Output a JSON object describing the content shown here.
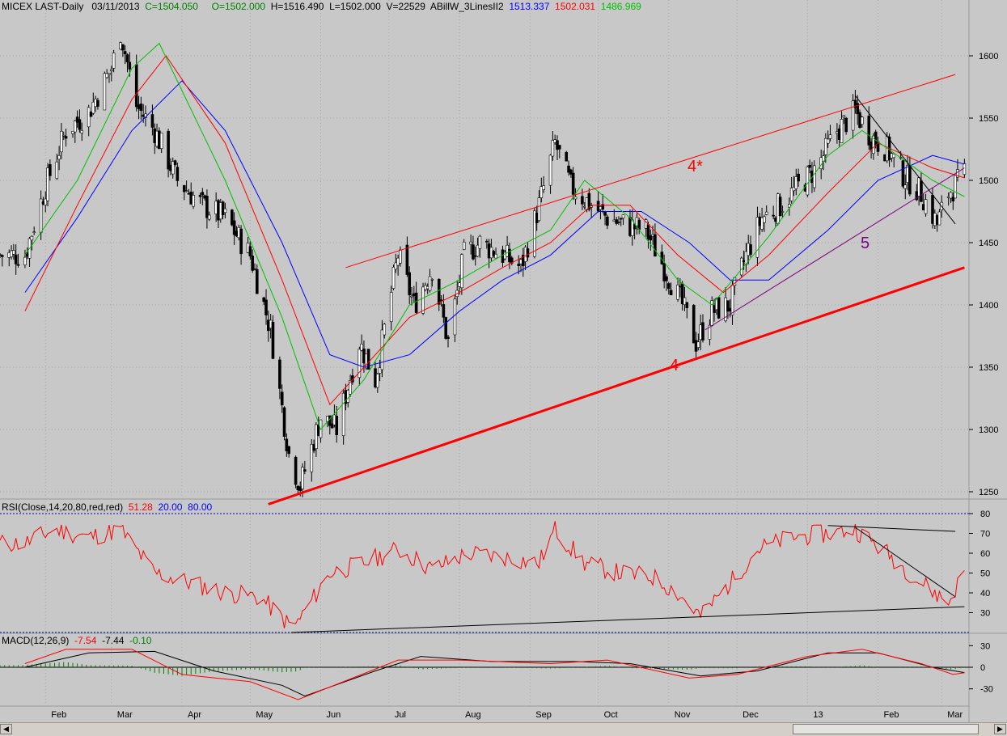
{
  "header": {
    "symbol": "MICEX LAST-Daily",
    "date": "03/11/2013",
    "close": "C=1504.050",
    "open": "O=1502.000",
    "high": "H=1516.490",
    "low": "L=1502.000",
    "volume": "V=22529",
    "indicator": "ABillW_3LinesII2",
    "ind_blue": "1513.337",
    "ind_red": "1502.031",
    "ind_green": "1486.969"
  },
  "rsi_header": {
    "label": "RSI(Close,14,20,80,red,red)",
    "value": "51.28",
    "lower": "20.00",
    "upper": "80.00"
  },
  "macd_header": {
    "label": "MACD(12,26,9)",
    "macd": "-7.54",
    "signal": "-7.44",
    "hist": "-0.10"
  },
  "annotations": {
    "wave4star": "4*",
    "wave4": "4",
    "wave5": "5"
  },
  "colors": {
    "up": "#ffffff",
    "down": "#000000",
    "blue": "#0000ff",
    "red": "#ff0000",
    "green": "#00c000",
    "purple": "#800080",
    "grid": "#0000aa"
  },
  "chart_data": [
    {
      "type": "candlestick",
      "title": "MICEX LAST-Daily",
      "price_ticks": [
        1250,
        1300,
        1350,
        1400,
        1450,
        1500,
        1550,
        1600
      ],
      "month_labels": [
        "Feb",
        "Mar",
        "Apr",
        "May",
        "Jun",
        "Jul",
        "Aug",
        "Sep",
        "Oct",
        "Nov",
        "Dec",
        "13",
        "Feb",
        "Mar"
      ],
      "close_path": [
        [
          "2012-01-23",
          1440
        ],
        [
          "2012-02-01",
          1495
        ],
        [
          "2012-02-10",
          1540
        ],
        [
          "2012-02-20",
          1555
        ],
        [
          "2012-03-01",
          1590
        ],
        [
          "2012-03-05",
          1620
        ],
        [
          "2012-03-12",
          1560
        ],
        [
          "2012-03-20",
          1540
        ],
        [
          "2012-03-30",
          1500
        ],
        [
          "2012-04-10",
          1480
        ],
        [
          "2012-04-20",
          1470
        ],
        [
          "2012-05-01",
          1440
        ],
        [
          "2012-05-10",
          1380
        ],
        [
          "2012-05-18",
          1280
        ],
        [
          "2012-05-23",
          1255
        ],
        [
          "2012-06-01",
          1310
        ],
        [
          "2012-06-08",
          1300
        ],
        [
          "2012-06-18",
          1370
        ],
        [
          "2012-06-25",
          1340
        ],
        [
          "2012-07-05",
          1440
        ],
        [
          "2012-07-12",
          1400
        ],
        [
          "2012-07-20",
          1430
        ],
        [
          "2012-07-27",
          1370
        ],
        [
          "2012-08-03",
          1440
        ],
        [
          "2012-08-10",
          1450
        ],
        [
          "2012-08-20",
          1440
        ],
        [
          "2012-08-28",
          1430
        ],
        [
          "2012-09-05",
          1480
        ],
        [
          "2012-09-12",
          1530
        ],
        [
          "2012-09-19",
          1495
        ],
        [
          "2012-09-28",
          1480
        ],
        [
          "2012-10-05",
          1470
        ],
        [
          "2012-10-12",
          1465
        ],
        [
          "2012-10-22",
          1460
        ],
        [
          "2012-10-30",
          1430
        ],
        [
          "2012-11-07",
          1400
        ],
        [
          "2012-11-13",
          1370
        ],
        [
          "2012-11-20",
          1395
        ],
        [
          "2012-11-28",
          1400
        ],
        [
          "2012-12-05",
          1440
        ],
        [
          "2012-12-12",
          1470
        ],
        [
          "2012-12-20",
          1480
        ],
        [
          "2013-01-05",
          1510
        ],
        [
          "2013-01-14",
          1540
        ],
        [
          "2013-01-22",
          1555
        ],
        [
          "2013-01-29",
          1535
        ],
        [
          "2013-02-05",
          1525
        ],
        [
          "2013-02-12",
          1505
        ],
        [
          "2013-02-20",
          1490
        ],
        [
          "2013-02-27",
          1465
        ],
        [
          "2013-03-04",
          1490
        ],
        [
          "2013-03-11",
          1504
        ]
      ],
      "ma_blue": [
        [
          "2012-01-23",
          1410
        ],
        [
          "2012-02-15",
          1470
        ],
        [
          "2012-03-10",
          1540
        ],
        [
          "2012-04-01",
          1580
        ],
        [
          "2012-04-20",
          1540
        ],
        [
          "2012-05-15",
          1450
        ],
        [
          "2012-06-05",
          1360
        ],
        [
          "2012-06-20",
          1350
        ],
        [
          "2012-07-10",
          1360
        ],
        [
          "2012-08-01",
          1395
        ],
        [
          "2012-08-20",
          1420
        ],
        [
          "2012-09-10",
          1440
        ],
        [
          "2012-10-01",
          1475
        ],
        [
          "2012-10-20",
          1475
        ],
        [
          "2012-11-10",
          1450
        ],
        [
          "2012-11-28",
          1420
        ],
        [
          "2012-12-15",
          1420
        ],
        [
          "2013-01-10",
          1460
        ],
        [
          "2013-02-01",
          1500
        ],
        [
          "2013-02-25",
          1520
        ],
        [
          "2013-03-11",
          1513
        ]
      ],
      "ma_red": [
        [
          "2012-01-23",
          1395
        ],
        [
          "2012-02-15",
          1480
        ],
        [
          "2012-03-10",
          1565
        ],
        [
          "2012-03-25",
          1600
        ],
        [
          "2012-04-20",
          1530
        ],
        [
          "2012-05-15",
          1420
        ],
        [
          "2012-06-05",
          1320
        ],
        [
          "2012-06-20",
          1350
        ],
        [
          "2012-07-10",
          1390
        ],
        [
          "2012-08-01",
          1410
        ],
        [
          "2012-08-20",
          1430
        ],
        [
          "2012-09-10",
          1450
        ],
        [
          "2012-09-28",
          1480
        ],
        [
          "2012-10-15",
          1480
        ],
        [
          "2012-11-05",
          1440
        ],
        [
          "2012-11-25",
          1410
        ],
        [
          "2012-12-15",
          1440
        ],
        [
          "2013-01-10",
          1490
        ],
        [
          "2013-02-01",
          1530
        ],
        [
          "2013-02-25",
          1510
        ],
        [
          "2013-03-11",
          1502
        ]
      ],
      "ma_green": [
        [
          "2012-01-23",
          1440
        ],
        [
          "2012-02-15",
          1500
        ],
        [
          "2012-03-10",
          1590
        ],
        [
          "2012-03-22",
          1610
        ],
        [
          "2012-04-20",
          1500
        ],
        [
          "2012-05-15",
          1390
        ],
        [
          "2012-06-01",
          1300
        ],
        [
          "2012-06-20",
          1340
        ],
        [
          "2012-07-10",
          1400
        ],
        [
          "2012-08-01",
          1420
        ],
        [
          "2012-08-20",
          1440
        ],
        [
          "2012-09-10",
          1460
        ],
        [
          "2012-09-25",
          1500
        ],
        [
          "2012-10-15",
          1470
        ],
        [
          "2012-11-05",
          1420
        ],
        [
          "2012-11-20",
          1400
        ],
        [
          "2012-12-15",
          1455
        ],
        [
          "2013-01-10",
          1520
        ],
        [
          "2013-01-25",
          1540
        ],
        [
          "2013-02-25",
          1500
        ],
        [
          "2013-03-11",
          1487
        ]
      ],
      "trendlines": [
        {
          "color": "red",
          "from": [
            "2012-05-09",
            1240
          ],
          "to": [
            "2013-03-11",
            1430
          ],
          "bold": true
        },
        {
          "color": "red",
          "from": [
            "2012-06-12",
            1430
          ],
          "to": [
            "2013-03-07",
            1585
          ],
          "bold": false
        },
        {
          "color": "purple",
          "from": [
            "2012-11-17",
            1380
          ],
          "to": [
            "2013-03-11",
            1510
          ],
          "bold": false
        },
        {
          "color": "black",
          "from": [
            "2013-01-22",
            1568
          ],
          "to": [
            "2013-03-07",
            1465
          ],
          "bold": false
        }
      ]
    },
    {
      "type": "line",
      "title": "RSI(Close,14,20,80,red,red)",
      "y_ticks": [
        30,
        40,
        50,
        60,
        70,
        80
      ],
      "levels": [
        20,
        80
      ],
      "series": [
        {
          "name": "RSI",
          "values": [
            [
              "2012-01-23",
              65
            ],
            [
              "2012-02-05",
              72
            ],
            [
              "2012-02-20",
              68
            ],
            [
              "2012-03-05",
              72
            ],
            [
              "2012-03-20",
              50
            ],
            [
              "2012-04-05",
              45
            ],
            [
              "2012-04-20",
              40
            ],
            [
              "2012-05-05",
              38
            ],
            [
              "2012-05-20",
              22
            ],
            [
              "2012-06-05",
              50
            ],
            [
              "2012-06-20",
              55
            ],
            [
              "2012-07-05",
              62
            ],
            [
              "2012-07-20",
              52
            ],
            [
              "2012-08-05",
              60
            ],
            [
              "2012-08-20",
              58
            ],
            [
              "2012-09-05",
              55
            ],
            [
              "2012-09-12",
              72
            ],
            [
              "2012-09-25",
              55
            ],
            [
              "2012-10-10",
              50
            ],
            [
              "2012-10-25",
              48
            ],
            [
              "2012-11-05",
              40
            ],
            [
              "2012-11-15",
              28
            ],
            [
              "2012-11-28",
              45
            ],
            [
              "2012-12-10",
              62
            ],
            [
              "2012-12-25",
              68
            ],
            [
              "2013-01-10",
              70
            ],
            [
              "2013-01-22",
              72
            ],
            [
              "2013-02-05",
              60
            ],
            [
              "2013-02-20",
              45
            ],
            [
              "2013-03-04",
              35
            ],
            [
              "2013-03-11",
              51
            ]
          ]
        }
      ],
      "trendlines": [
        {
          "from": [
            "2012-05-19",
            20
          ],
          "to": [
            "2013-03-11",
            33
          ]
        },
        {
          "from": [
            "2013-01-10",
            74
          ],
          "to": [
            "2013-03-07",
            71
          ]
        },
        {
          "from": [
            "2013-01-22",
            73
          ],
          "to": [
            "2013-03-07",
            38
          ]
        }
      ]
    },
    {
      "type": "line",
      "title": "MACD(12,26,9)",
      "y_ticks": [
        30,
        0,
        -30
      ],
      "series": [
        {
          "name": "MACD",
          "values": [
            [
              "2012-01-23",
              5
            ],
            [
              "2012-02-10",
              25
            ],
            [
              "2012-03-10",
              25
            ],
            [
              "2012-04-01",
              -10
            ],
            [
              "2012-05-01",
              -20
            ],
            [
              "2012-05-22",
              -45
            ],
            [
              "2012-06-15",
              -15
            ],
            [
              "2012-07-05",
              10
            ],
            [
              "2012-08-01",
              10
            ],
            [
              "2012-09-10",
              5
            ],
            [
              "2012-10-05",
              10
            ],
            [
              "2012-11-10",
              -15
            ],
            [
              "2012-12-01",
              -10
            ],
            [
              "2013-01-01",
              15
            ],
            [
              "2013-01-25",
              25
            ],
            [
              "2013-02-20",
              5
            ],
            [
              "2013-03-06",
              -10
            ],
            [
              "2013-03-11",
              -7.54
            ]
          ]
        },
        {
          "name": "Signal",
          "values": [
            [
              "2012-01-23",
              0
            ],
            [
              "2012-02-20",
              20
            ],
            [
              "2012-03-20",
              22
            ],
            [
              "2012-04-15",
              -5
            ],
            [
              "2012-05-15",
              -25
            ],
            [
              "2012-05-25",
              -40
            ],
            [
              "2012-06-25",
              -5
            ],
            [
              "2012-07-15",
              15
            ],
            [
              "2012-08-15",
              8
            ],
            [
              "2012-09-20",
              8
            ],
            [
              "2012-10-15",
              5
            ],
            [
              "2012-11-15",
              -12
            ],
            [
              "2012-12-10",
              -5
            ],
            [
              "2013-01-10",
              20
            ],
            [
              "2013-02-01",
              20
            ],
            [
              "2013-02-25",
              0
            ],
            [
              "2013-03-11",
              -7.44
            ]
          ]
        }
      ]
    }
  ]
}
